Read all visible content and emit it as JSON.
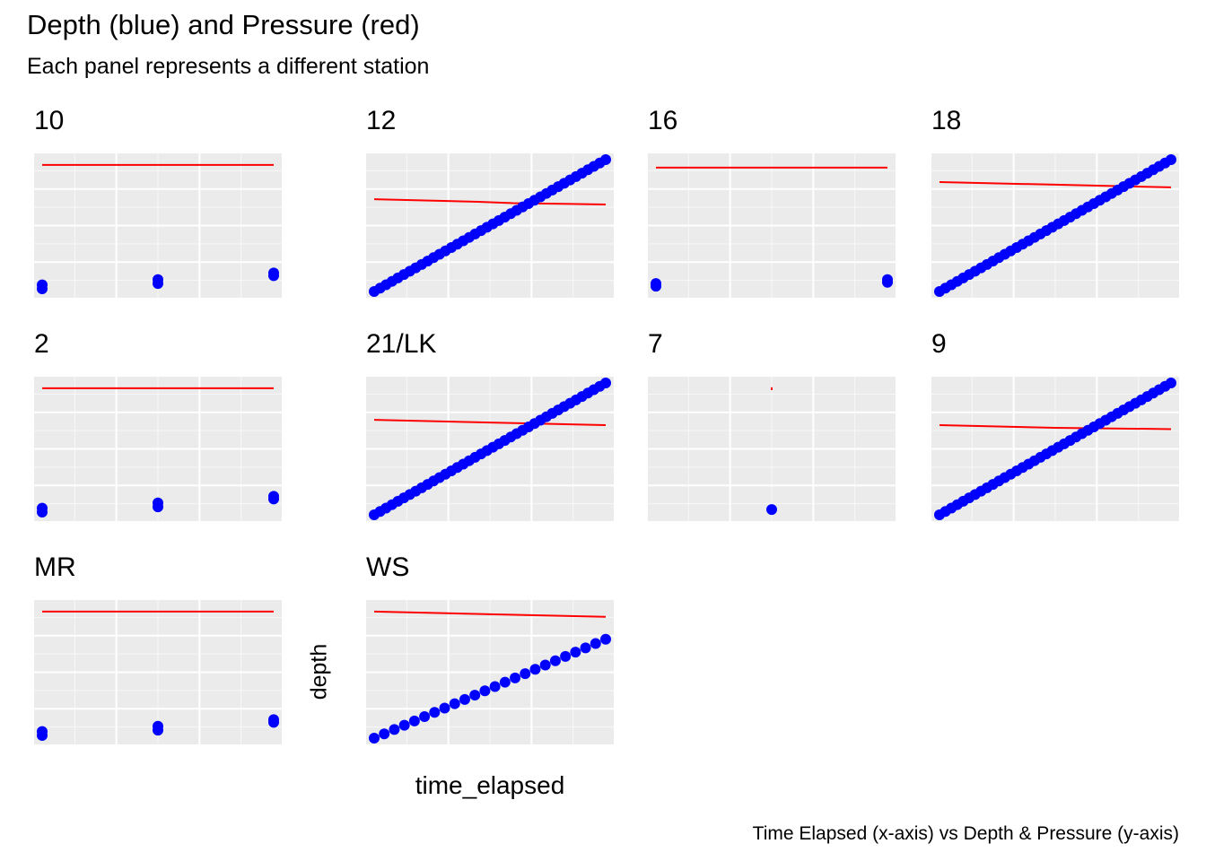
{
  "title": "Depth (blue) and Pressure (red)",
  "subtitle": "Each panel represents a different station",
  "caption": "Time Elapsed (x-axis) vs Depth & Pressure (y-axis)",
  "axis_titles": {
    "x": "time_elapsed",
    "y": "depth"
  },
  "colors": {
    "depth": "#0000ff",
    "pressure": "#ff0000",
    "panel_bg": "#ebebeb",
    "grid": "#ffffff"
  },
  "chart_data": {
    "type": "scatter",
    "facet_layout": "3 rows x 4 columns, free scales, no tick labels",
    "grid": true,
    "panels": [
      {
        "label": "10",
        "pattern": "flat",
        "pressure_y": 0.96,
        "depth_points": [
          {
            "x": 0.0,
            "y": 0.02
          },
          {
            "x": 0.0,
            "y": 0.05
          },
          {
            "x": 0.5,
            "y": 0.06
          },
          {
            "x": 0.5,
            "y": 0.09
          },
          {
            "x": 1.0,
            "y": 0.12
          },
          {
            "x": 1.0,
            "y": 0.14
          }
        ]
      },
      {
        "label": "12",
        "pattern": "linear",
        "n_points": 40,
        "depth_range": [
          0.0,
          1.0
        ],
        "pressure_line": [
          {
            "x": 0.0,
            "y": 0.7
          },
          {
            "x": 0.45,
            "y": 0.68
          },
          {
            "x": 0.6,
            "y": 0.67
          },
          {
            "x": 1.0,
            "y": 0.66
          }
        ]
      },
      {
        "label": "16",
        "pattern": "sparse",
        "pressure_y": 0.94,
        "depth_points": [
          {
            "x": 0.0,
            "y": 0.04
          },
          {
            "x": 0.0,
            "y": 0.06
          },
          {
            "x": 1.0,
            "y": 0.07
          },
          {
            "x": 1.0,
            "y": 0.09
          }
        ]
      },
      {
        "label": "18",
        "pattern": "linear",
        "n_points": 40,
        "depth_range": [
          0.0,
          1.0
        ],
        "pressure_line": [
          {
            "x": 0.0,
            "y": 0.83
          },
          {
            "x": 0.5,
            "y": 0.81
          },
          {
            "x": 1.0,
            "y": 0.79
          }
        ]
      },
      {
        "label": "2",
        "pattern": "flat",
        "pressure_y": 0.96,
        "depth_points": [
          {
            "x": 0.0,
            "y": 0.02
          },
          {
            "x": 0.0,
            "y": 0.05
          },
          {
            "x": 0.5,
            "y": 0.06
          },
          {
            "x": 0.5,
            "y": 0.09
          },
          {
            "x": 1.0,
            "y": 0.12
          },
          {
            "x": 1.0,
            "y": 0.14
          }
        ]
      },
      {
        "label": "21/LK",
        "pattern": "linear",
        "n_points": 40,
        "depth_range": [
          0.0,
          1.0
        ],
        "pressure_line": [
          {
            "x": 0.0,
            "y": 0.72
          },
          {
            "x": 0.5,
            "y": 0.7
          },
          {
            "x": 1.0,
            "y": 0.68
          }
        ]
      },
      {
        "label": "7",
        "pattern": "single",
        "pressure_y": 0.96,
        "depth_points": [
          {
            "x": 0.5,
            "y": 0.04
          }
        ]
      },
      {
        "label": "9",
        "pattern": "linear",
        "n_points": 40,
        "depth_range": [
          0.0,
          1.0
        ],
        "pressure_line": [
          {
            "x": 0.0,
            "y": 0.68
          },
          {
            "x": 0.5,
            "y": 0.66
          },
          {
            "x": 1.0,
            "y": 0.65
          }
        ]
      },
      {
        "label": "MR",
        "pattern": "flat",
        "pressure_y": 0.96,
        "depth_points": [
          {
            "x": 0.0,
            "y": 0.02
          },
          {
            "x": 0.0,
            "y": 0.05
          },
          {
            "x": 0.5,
            "y": 0.06
          },
          {
            "x": 0.5,
            "y": 0.09
          },
          {
            "x": 1.0,
            "y": 0.12
          },
          {
            "x": 1.0,
            "y": 0.14
          }
        ]
      },
      {
        "label": "WS",
        "pattern": "linear",
        "n_points": 24,
        "depth_range": [
          0.0,
          0.75
        ],
        "pressure_line": [
          {
            "x": 0.0,
            "y": 0.96
          },
          {
            "x": 0.5,
            "y": 0.94
          },
          {
            "x": 1.0,
            "y": 0.92
          }
        ]
      }
    ]
  }
}
